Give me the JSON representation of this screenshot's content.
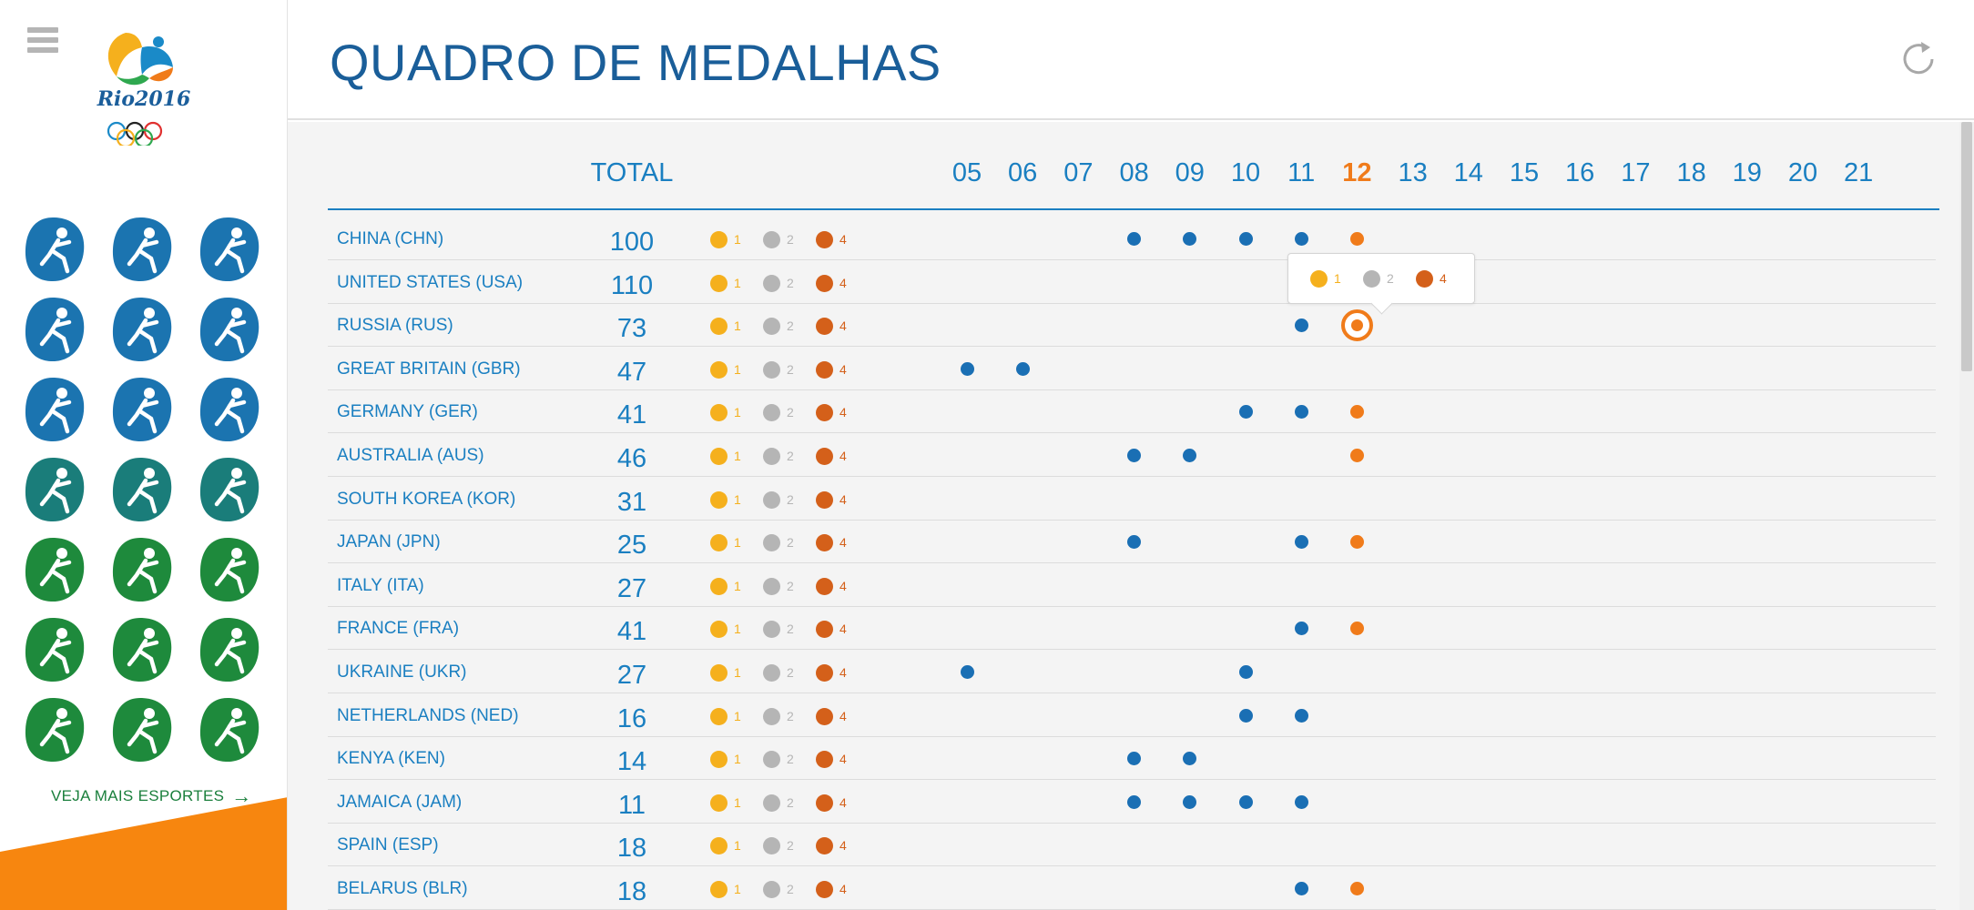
{
  "app": {
    "title": "QUADRO DE MEDALHAS",
    "logo_text": "Rio2016"
  },
  "sidebar": {
    "menu_icon": "hamburger-icon",
    "sports": [
      "athletics-icon",
      "badminton-icon",
      "volleyball-icon",
      "bmx-cycling-icon",
      "mountain-bike-icon",
      "road-cycling-icon",
      "swimming-icon",
      "water-polo-icon",
      "diving-icon",
      "synchronized-swimming-icon",
      "rhythmic-gymnastics-icon",
      "golf-icon",
      "handball-icon",
      "basketball-icon",
      "hockey-icon",
      "rowing-icon",
      "rugby-icon",
      "taekwondo-icon",
      "fencing-icon",
      "equestrian-icon",
      "sailing-icon"
    ],
    "more_link": "VEJA MAIS ESPORTES"
  },
  "header": {
    "refresh_icon": "refresh-icon"
  },
  "table": {
    "total_label": "TOTAL",
    "days": [
      "05",
      "06",
      "07",
      "08",
      "09",
      "10",
      "11",
      "12",
      "13",
      "14",
      "15",
      "16",
      "17",
      "18",
      "19",
      "20",
      "21"
    ],
    "active_day": "12",
    "rows": [
      {
        "country": "CHINA (CHN)",
        "total": "100",
        "gold": "1",
        "silver": "2",
        "bronze": "4",
        "days": [
          "08",
          "09",
          "10",
          "11",
          "12"
        ]
      },
      {
        "country": "UNITED STATES (USA)",
        "total": "110",
        "gold": "1",
        "silver": "2",
        "bronze": "4",
        "days": []
      },
      {
        "country": "RUSSIA (RUS)",
        "total": "73",
        "gold": "1",
        "silver": "2",
        "bronze": "4",
        "days": [
          "11",
          "12"
        ],
        "selected_day": "12"
      },
      {
        "country": "GREAT BRITAIN (GBR)",
        "total": "47",
        "gold": "1",
        "silver": "2",
        "bronze": "4",
        "days": [
          "05",
          "06"
        ]
      },
      {
        "country": "GERMANY (GER)",
        "total": "41",
        "gold": "1",
        "silver": "2",
        "bronze": "4",
        "days": [
          "10",
          "11",
          "12"
        ]
      },
      {
        "country": "AUSTRALIA (AUS)",
        "total": "46",
        "gold": "1",
        "silver": "2",
        "bronze": "4",
        "days": [
          "08",
          "09",
          "12"
        ]
      },
      {
        "country": "SOUTH KOREA (KOR)",
        "total": "31",
        "gold": "1",
        "silver": "2",
        "bronze": "4",
        "days": []
      },
      {
        "country": "JAPAN (JPN)",
        "total": "25",
        "gold": "1",
        "silver": "2",
        "bronze": "4",
        "days": [
          "08",
          "11",
          "12"
        ]
      },
      {
        "country": "ITALY (ITA)",
        "total": "27",
        "gold": "1",
        "silver": "2",
        "bronze": "4",
        "days": []
      },
      {
        "country": "FRANCE (FRA)",
        "total": "41",
        "gold": "1",
        "silver": "2",
        "bronze": "4",
        "days": [
          "11",
          "12"
        ]
      },
      {
        "country": "UKRAINE (UKR)",
        "total": "27",
        "gold": "1",
        "silver": "2",
        "bronze": "4",
        "days": [
          "05",
          "10"
        ]
      },
      {
        "country": "NETHERLANDS (NED)",
        "total": "16",
        "gold": "1",
        "silver": "2",
        "bronze": "4",
        "days": [
          "10",
          "11"
        ]
      },
      {
        "country": "KENYA (KEN)",
        "total": "14",
        "gold": "1",
        "silver": "2",
        "bronze": "4",
        "days": [
          "08",
          "09"
        ]
      },
      {
        "country": "JAMAICA (JAM)",
        "total": "11",
        "gold": "1",
        "silver": "2",
        "bronze": "4",
        "days": [
          "08",
          "09",
          "10",
          "11"
        ]
      },
      {
        "country": "SPAIN (ESP)",
        "total": "18",
        "gold": "1",
        "silver": "2",
        "bronze": "4",
        "days": []
      },
      {
        "country": "BELARUS (BLR)",
        "total": "18",
        "gold": "1",
        "silver": "2",
        "bronze": "4",
        "days": [
          "11",
          "12"
        ]
      }
    ],
    "tooltip": {
      "gold": "1",
      "silver": "2",
      "bronze": "4"
    }
  },
  "colors": {
    "primary_blue": "#1a7fc1",
    "title_blue": "#1a5e99",
    "dot_blue": "#1a6fb4",
    "active_orange": "#f07b1a",
    "gold": "#f5b01d",
    "silver": "#b5b5b5",
    "bronze": "#d4601a",
    "sport_blue": "#1b74b0",
    "sport_green": "#1e8a3c"
  }
}
